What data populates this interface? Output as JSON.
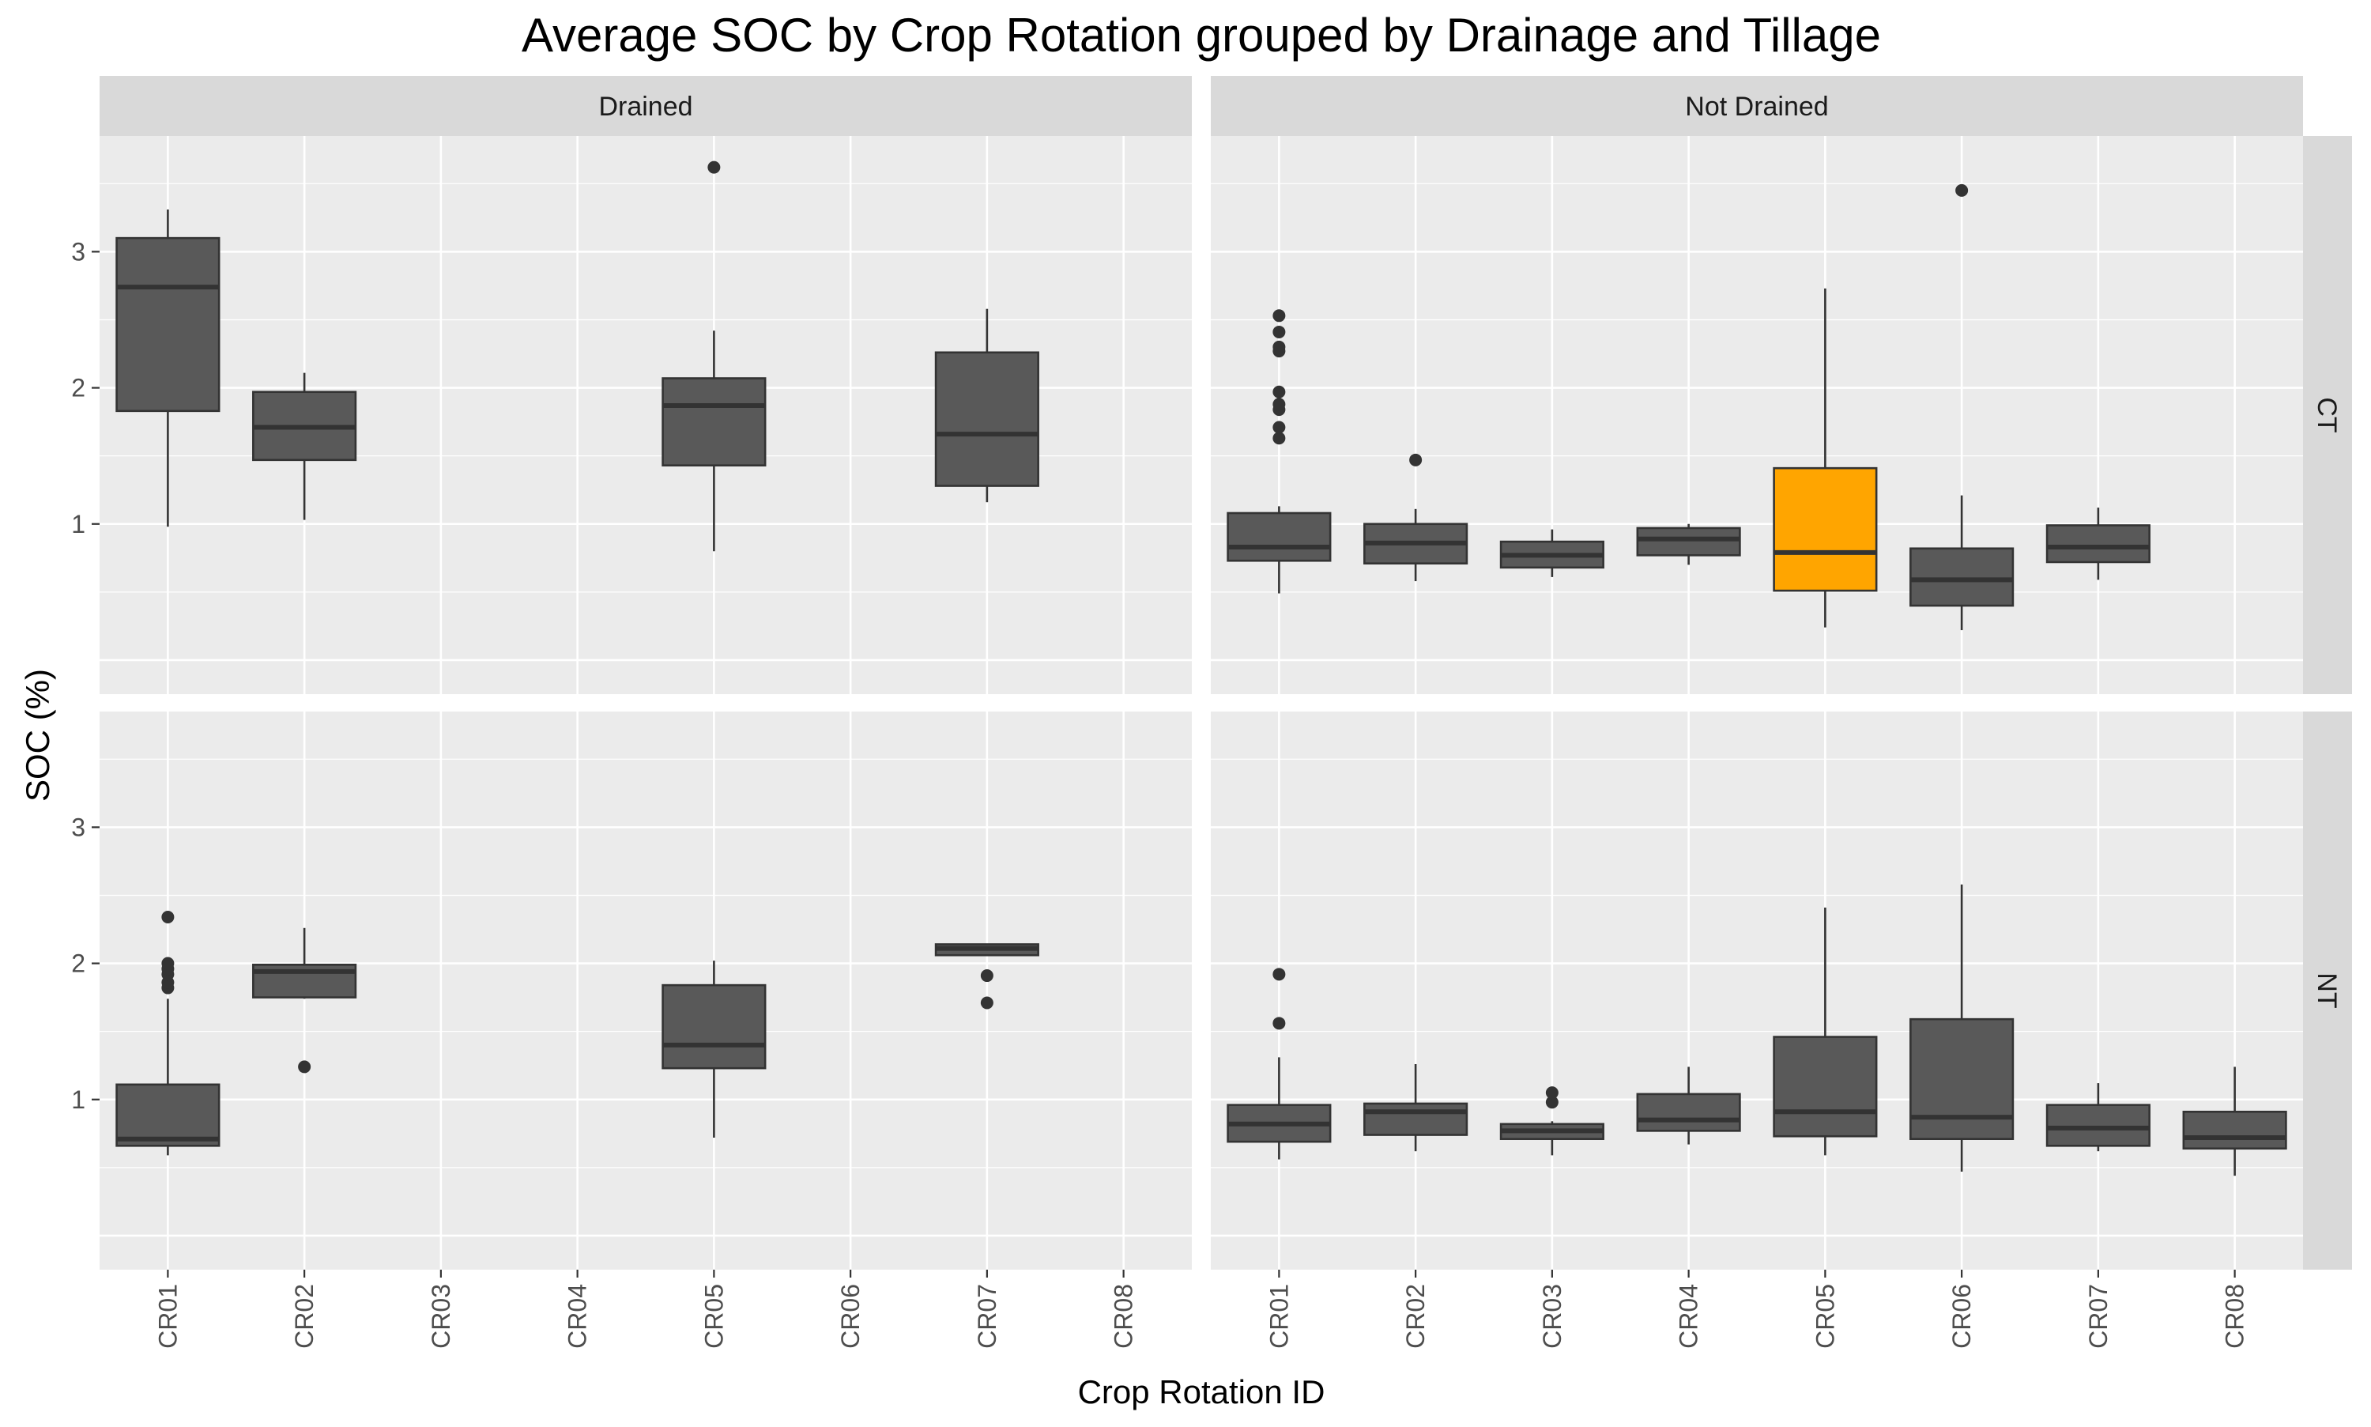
{
  "chart_data": {
    "type": "boxplot",
    "title": "Average SOC by Crop Rotation grouped by Drainage and Tillage",
    "xlabel": "Crop Rotation ID",
    "ylabel": "SOC (%)",
    "ylim": [
      -0.25,
      3.85
    ],
    "y_ticks": [
      1,
      2,
      3
    ],
    "categories": [
      "CR01",
      "CR02",
      "CR03",
      "CR04",
      "CR05",
      "CR06",
      "CR07",
      "CR08"
    ],
    "column_facets": [
      "Drained",
      "Not Drained"
    ],
    "row_facets": [
      "CT",
      "NT"
    ],
    "grid": true,
    "colors": {
      "default_fill": "#595959",
      "highlight_fill": "#FFA500",
      "panel_bg": "#EBEBEB",
      "strip_bg": "#D9D9D9",
      "grid": "#FFFFFF",
      "box_line": "#333333"
    },
    "panels": [
      {
        "column": "Drained",
        "row": "CT",
        "boxes": [
          {
            "category": "CR01",
            "min": 0.98,
            "q1": 1.83,
            "median": 2.74,
            "q3": 3.1,
            "max": 3.31,
            "outliers": []
          },
          {
            "category": "CR02",
            "min": 1.03,
            "q1": 1.47,
            "median": 1.71,
            "q3": 1.97,
            "max": 2.11,
            "outliers": []
          },
          {
            "category": "CR05",
            "min": 0.8,
            "q1": 1.43,
            "median": 1.87,
            "q3": 2.07,
            "max": 2.42,
            "outliers": [
              3.62
            ]
          },
          {
            "category": "CR07",
            "min": 1.16,
            "q1": 1.28,
            "median": 1.66,
            "q3": 2.26,
            "max": 2.58,
            "outliers": []
          }
        ]
      },
      {
        "column": "Not Drained",
        "row": "CT",
        "boxes": [
          {
            "category": "CR01",
            "min": 0.49,
            "q1": 0.73,
            "median": 0.83,
            "q3": 1.08,
            "max": 1.13,
            "outliers": [
              1.63,
              1.71,
              1.84,
              1.88,
              1.97,
              2.27,
              2.3,
              2.41,
              2.53
            ]
          },
          {
            "category": "CR02",
            "min": 0.58,
            "q1": 0.71,
            "median": 0.86,
            "q3": 1.0,
            "max": 1.11,
            "outliers": [
              1.47
            ]
          },
          {
            "category": "CR03",
            "min": 0.61,
            "q1": 0.68,
            "median": 0.77,
            "q3": 0.87,
            "max": 0.96,
            "outliers": []
          },
          {
            "category": "CR04",
            "min": 0.7,
            "q1": 0.77,
            "median": 0.89,
            "q3": 0.97,
            "max": 1.0,
            "outliers": []
          },
          {
            "category": "CR05",
            "min": 0.24,
            "q1": 0.51,
            "median": 0.79,
            "q3": 1.41,
            "max": 2.73,
            "highlight": true,
            "outliers": []
          },
          {
            "category": "CR06",
            "min": 0.22,
            "q1": 0.4,
            "median": 0.59,
            "q3": 0.82,
            "max": 1.21,
            "outliers": [
              3.45
            ]
          },
          {
            "category": "CR07",
            "min": 0.59,
            "q1": 0.72,
            "median": 0.83,
            "q3": 0.99,
            "max": 1.12,
            "outliers": []
          }
        ]
      },
      {
        "column": "Drained",
        "row": "NT",
        "boxes": [
          {
            "category": "CR01",
            "min": 0.59,
            "q1": 0.66,
            "median": 0.71,
            "q3": 1.11,
            "max": 1.74,
            "outliers": [
              1.82,
              1.86,
              1.92,
              1.96,
              2.0,
              2.34
            ]
          },
          {
            "category": "CR02",
            "min": 1.74,
            "q1": 1.75,
            "median": 1.94,
            "q3": 1.99,
            "max": 2.26,
            "outliers": [
              1.24
            ]
          },
          {
            "category": "CR05",
            "min": 0.72,
            "q1": 1.23,
            "median": 1.4,
            "q3": 1.84,
            "max": 2.02,
            "outliers": []
          },
          {
            "category": "CR07",
            "min": 2.06,
            "q1": 2.06,
            "median": 2.11,
            "q3": 2.14,
            "max": 2.14,
            "outliers": [
              1.91,
              1.71
            ]
          }
        ]
      },
      {
        "column": "Not Drained",
        "row": "NT",
        "boxes": [
          {
            "category": "CR01",
            "min": 0.56,
            "q1": 0.69,
            "median": 0.82,
            "q3": 0.96,
            "max": 1.31,
            "outliers": [
              1.56,
              1.92
            ]
          },
          {
            "category": "CR02",
            "min": 0.62,
            "q1": 0.74,
            "median": 0.91,
            "q3": 0.97,
            "max": 1.26,
            "outliers": []
          },
          {
            "category": "CR03",
            "min": 0.59,
            "q1": 0.71,
            "median": 0.77,
            "q3": 0.82,
            "max": 0.84,
            "outliers": [
              0.98,
              1.05
            ]
          },
          {
            "category": "CR04",
            "min": 0.67,
            "q1": 0.77,
            "median": 0.85,
            "q3": 1.04,
            "max": 1.24,
            "outliers": []
          },
          {
            "category": "CR05",
            "min": 0.59,
            "q1": 0.73,
            "median": 0.91,
            "q3": 1.46,
            "max": 2.41,
            "outliers": []
          },
          {
            "category": "CR06",
            "min": 0.47,
            "q1": 0.71,
            "median": 0.87,
            "q3": 1.59,
            "max": 2.58,
            "outliers": []
          },
          {
            "category": "CR07",
            "min": 0.62,
            "q1": 0.66,
            "median": 0.79,
            "q3": 0.96,
            "max": 1.12,
            "outliers": []
          },
          {
            "category": "CR08",
            "min": 0.44,
            "q1": 0.64,
            "median": 0.72,
            "q3": 0.91,
            "max": 1.24,
            "outliers": []
          }
        ]
      }
    ]
  }
}
